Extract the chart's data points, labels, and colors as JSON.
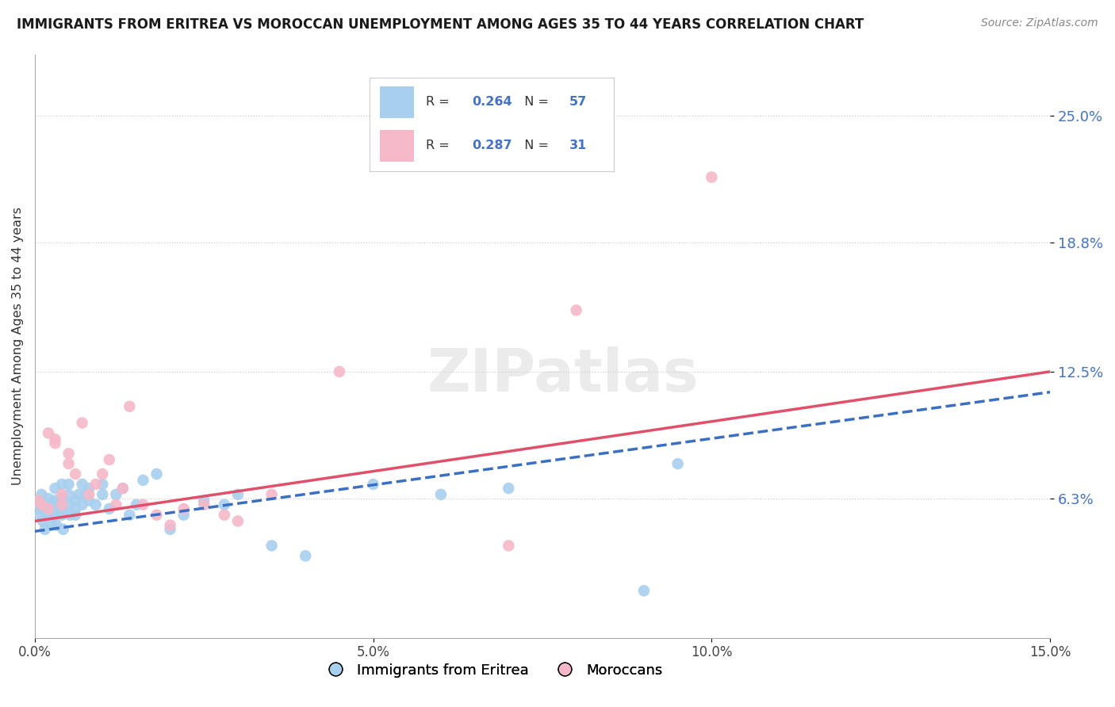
{
  "title": "IMMIGRANTS FROM ERITREA VS MOROCCAN UNEMPLOYMENT AMONG AGES 35 TO 44 YEARS CORRELATION CHART",
  "source": "Source: ZipAtlas.com",
  "ylabel": "Unemployment Among Ages 35 to 44 years",
  "xlim": [
    0.0,
    0.15
  ],
  "ylim": [
    -0.005,
    0.28
  ],
  "yticks": [
    0.063,
    0.125,
    0.188,
    0.25
  ],
  "ytick_labels": [
    "6.3%",
    "12.5%",
    "18.8%",
    "25.0%"
  ],
  "xticks": [
    0.0,
    0.05,
    0.1,
    0.15
  ],
  "xtick_labels": [
    "0.0%",
    "5.0%",
    "10.0%",
    "15.0%"
  ],
  "series1_name": "Immigrants from Eritrea",
  "series1_R": 0.264,
  "series1_N": 57,
  "series1_color": "#A8CFEE",
  "series1_line_color": "#3B6FC4",
  "series2_name": "Moroccans",
  "series2_R": 0.287,
  "series2_N": 31,
  "series2_color": "#F5B8C8",
  "series2_line_color": "#E0506A",
  "watermark": "ZIPatlas",
  "background_color": "#ffffff",
  "series1_x": [
    0.0005,
    0.0008,
    0.001,
    0.001,
    0.0012,
    0.0015,
    0.002,
    0.002,
    0.002,
    0.0022,
    0.0025,
    0.003,
    0.003,
    0.003,
    0.003,
    0.0032,
    0.0035,
    0.004,
    0.004,
    0.004,
    0.004,
    0.0042,
    0.005,
    0.005,
    0.005,
    0.0052,
    0.006,
    0.006,
    0.006,
    0.0065,
    0.007,
    0.007,
    0.0075,
    0.008,
    0.008,
    0.009,
    0.01,
    0.01,
    0.011,
    0.012,
    0.013,
    0.014,
    0.015,
    0.016,
    0.018,
    0.02,
    0.022,
    0.025,
    0.028,
    0.03,
    0.035,
    0.04,
    0.05,
    0.06,
    0.07,
    0.09,
    0.095
  ],
  "series1_y": [
    0.06,
    0.055,
    0.065,
    0.058,
    0.052,
    0.048,
    0.055,
    0.06,
    0.063,
    0.057,
    0.05,
    0.058,
    0.055,
    0.062,
    0.068,
    0.05,
    0.06,
    0.055,
    0.058,
    0.063,
    0.07,
    0.048,
    0.06,
    0.065,
    0.07,
    0.055,
    0.062,
    0.055,
    0.058,
    0.065,
    0.06,
    0.07,
    0.065,
    0.062,
    0.068,
    0.06,
    0.065,
    0.07,
    0.058,
    0.065,
    0.068,
    0.055,
    0.06,
    0.072,
    0.075,
    0.048,
    0.055,
    0.062,
    0.06,
    0.065,
    0.04,
    0.035,
    0.07,
    0.065,
    0.068,
    0.018,
    0.08
  ],
  "series2_x": [
    0.0005,
    0.001,
    0.002,
    0.002,
    0.003,
    0.003,
    0.004,
    0.004,
    0.005,
    0.005,
    0.006,
    0.007,
    0.008,
    0.009,
    0.01,
    0.011,
    0.012,
    0.013,
    0.014,
    0.016,
    0.018,
    0.02,
    0.022,
    0.025,
    0.028,
    0.03,
    0.035,
    0.045,
    0.07,
    0.08,
    0.1
  ],
  "series2_y": [
    0.062,
    0.06,
    0.058,
    0.095,
    0.092,
    0.09,
    0.06,
    0.065,
    0.08,
    0.085,
    0.075,
    0.1,
    0.065,
    0.07,
    0.075,
    0.082,
    0.06,
    0.068,
    0.108,
    0.06,
    0.055,
    0.05,
    0.058,
    0.06,
    0.055,
    0.052,
    0.065,
    0.125,
    0.04,
    0.155,
    0.22
  ],
  "trend1_x0": 0.0,
  "trend1_x1": 0.15,
  "trend1_y0": 0.047,
  "trend1_y1": 0.115,
  "trend2_x0": 0.0,
  "trend2_x1": 0.15,
  "trend2_y0": 0.052,
  "trend2_y1": 0.125
}
